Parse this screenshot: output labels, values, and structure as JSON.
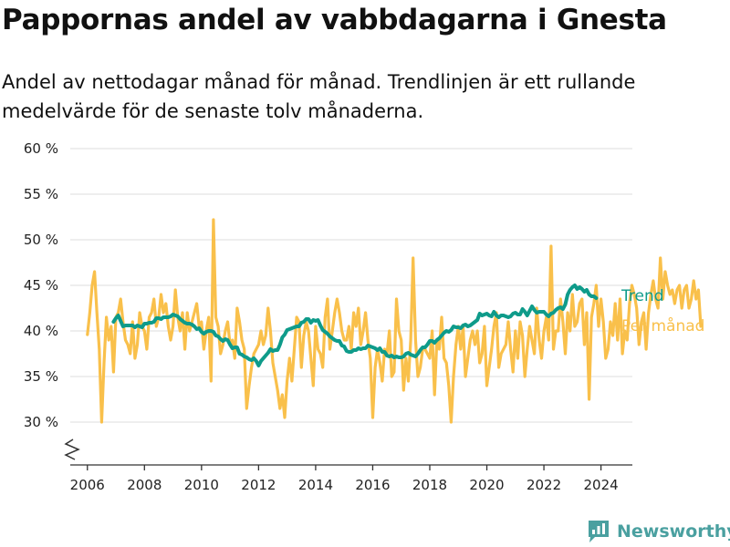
{
  "title": "Pappornas andel av vabbdagarna i Gnesta",
  "subtitle": "Andel av nettodagar månad för månad. Trendlinjen är ett rullande medelvärde för de senaste tolv månaderna.",
  "brand": "Newsworthy",
  "colors": {
    "monthly": "#f9c04b",
    "trend": "#0e9b8a",
    "grid": "#dedede",
    "axis": "#333333",
    "brand": "#4aa0a0"
  },
  "chart_data": {
    "type": "line",
    "title": "Pappornas andel av vabbdagarna i Gnesta",
    "xlim": [
      2005.4,
      2025.1
    ],
    "ylim": [
      30,
      60
    ],
    "y_ticks": [
      30,
      35,
      40,
      45,
      50,
      55,
      60
    ],
    "y_tick_labels": [
      "30 %",
      "35 %",
      "40 %",
      "45 %",
      "50 %",
      "55 %",
      "60 %"
    ],
    "x_ticks": [
      2006,
      2008,
      2010,
      2012,
      2014,
      2016,
      2018,
      2020,
      2022,
      2024
    ],
    "x_tick_labels": [
      "2006",
      "2008",
      "2010",
      "2012",
      "2014",
      "2016",
      "2018",
      "2020",
      "2022",
      "2024"
    ],
    "axis_break": true,
    "grid": true,
    "legend": "direct labels at right end of lines",
    "series": [
      {
        "name": "Per månad",
        "color": "#f9c04b",
        "x_start": "2006-01",
        "frequency": "monthly",
        "values": [
          39.6,
          42,
          45,
          46.5,
          42,
          38,
          30,
          36.5,
          41.5,
          39,
          40.5,
          35.5,
          41.5,
          42,
          43.5,
          41,
          39,
          38.5,
          37.5,
          41,
          37,
          38.5,
          42,
          40.5,
          40,
          38,
          41.5,
          42,
          43.5,
          40.5,
          41.5,
          44,
          42,
          43,
          40.5,
          39,
          40.5,
          44.5,
          41.5,
          40,
          42,
          38,
          42,
          40,
          41,
          42,
          43,
          40.5,
          41,
          38,
          40,
          41.5,
          34.5,
          52.2,
          41.5,
          40.5,
          37.5,
          38.5,
          40,
          41,
          38.5,
          39,
          37,
          42.5,
          41,
          39,
          38,
          31.5,
          34,
          36,
          37.5,
          38,
          38.5,
          40,
          38.5,
          39.5,
          42.5,
          40,
          36.5,
          35,
          33.5,
          31.5,
          33,
          30.5,
          34.5,
          37,
          34.5,
          38,
          41.5,
          41,
          36,
          39.5,
          41,
          40,
          37,
          34,
          40.5,
          38,
          37.5,
          36,
          41.5,
          43.5,
          38,
          40,
          42,
          43.5,
          42,
          40,
          39,
          39,
          40.5,
          38,
          42,
          40.5,
          42.5,
          38.5,
          40,
          42,
          39,
          37,
          30.5,
          36,
          38,
          36.5,
          34.5,
          38,
          37.5,
          40,
          35,
          35.5,
          43.5,
          40,
          39,
          33.5,
          37,
          34.5,
          39,
          48,
          39,
          35,
          36,
          38,
          38,
          37.5,
          37,
          40,
          33,
          39,
          38,
          41.5,
          37,
          36.5,
          34,
          30,
          35,
          38.5,
          40.5,
          38,
          40.5,
          35,
          37,
          39,
          40,
          38.5,
          40,
          36.5,
          37.5,
          40.5,
          34,
          36,
          38,
          40.5,
          42,
          36,
          37.5,
          38,
          38.5,
          41,
          38,
          35.5,
          40,
          37,
          41,
          39.5,
          35,
          38,
          40.5,
          39,
          37.5,
          42.5,
          39,
          37,
          40,
          41.5,
          39,
          49.3,
          38,
          40,
          40,
          43.5,
          41,
          37.5,
          42,
          40,
          44,
          40.5,
          41,
          43,
          43.5,
          38.5,
          42,
          32.5,
          41.5,
          43,
          45,
          40.5,
          43.5,
          41,
          37,
          38,
          41,
          39.5,
          43,
          39,
          43.5,
          37.5,
          40,
          39,
          43,
          45,
          44,
          42.5,
          38.5,
          41,
          42,
          38,
          42,
          44,
          45.5,
          43.5,
          42.5,
          48,
          43.5,
          46.5,
          45,
          44,
          44.5,
          43,
          44.5,
          45,
          42.5,
          44.5,
          45,
          42.5,
          43.5,
          45.5,
          43.5,
          44.5,
          40.5
        ]
      },
      {
        "name": "Trend",
        "color": "#0e9b8a",
        "x_start": "2006-12",
        "frequency": "monthly",
        "values": [
          41,
          41.4,
          41.7,
          41.1,
          40.5,
          40.6,
          40.6,
          40.6,
          40.6,
          40.4,
          40.6,
          40.5,
          40.4,
          40.8,
          40.8,
          40.9,
          40.9,
          41,
          41.4,
          41.4,
          41.3,
          41.5,
          41.5,
          41.5,
          41.6,
          41.8,
          41.7,
          41.6,
          41.3,
          41.1,
          40.9,
          40.8,
          40.8,
          40.7,
          40.5,
          40.2,
          40.3,
          39.9,
          39.7,
          39.9,
          40,
          40,
          39.9,
          39.5,
          39.4,
          39.1,
          38.9,
          39.1,
          39,
          38.5,
          38.1,
          38.2,
          38.2,
          37.5,
          37.4,
          37.2,
          37.1,
          36.9,
          36.8,
          37,
          36.7,
          36.2,
          36.7,
          37,
          37.3,
          37.6,
          38,
          37.8,
          37.9,
          37.9,
          38.5,
          39.3,
          39.6,
          40.1,
          40.2,
          40.3,
          40.4,
          40.5,
          40.5,
          40.9,
          41,
          41.3,
          41.3,
          40.9,
          41.2,
          41.1,
          41.2,
          40.6,
          40.1,
          39.9,
          39.7,
          39.4,
          39.2,
          39,
          38.9,
          38.9,
          38.4,
          38.3,
          37.8,
          37.7,
          37.7,
          37.9,
          37.9,
          38.1,
          38,
          38.1,
          38.1,
          38.4,
          38.3,
          38.2,
          38.1,
          37.9,
          38.1,
          37.7,
          37.7,
          37.3,
          37.2,
          37.3,
          37.1,
          37.2,
          37.1,
          37.1,
          37.2,
          37.5,
          37.6,
          37.4,
          37.3,
          37.2,
          37.5,
          37.9,
          38.2,
          38.2,
          38.5,
          38.9,
          38.9,
          38.7,
          39,
          39.2,
          39.5,
          39.8,
          40,
          39.9,
          40.1,
          40.5,
          40.4,
          40.4,
          40.3,
          40.6,
          40.7,
          40.5,
          40.6,
          40.8,
          41,
          41.2,
          41.9,
          41.7,
          41.8,
          41.9,
          41.7,
          41.6,
          42.1,
          41.7,
          41.5,
          41.7,
          41.7,
          41.6,
          41.5,
          41.6,
          41.9,
          42,
          41.8,
          41.8,
          42.4,
          42.1,
          41.7,
          42.2,
          42.7,
          42.3,
          42,
          42.1,
          42.1,
          42.1,
          41.8,
          41.6,
          41.9,
          42,
          42.3,
          42.5,
          42.6,
          42.4,
          42.9,
          44,
          44.5,
          44.8,
          45,
          44.6,
          44.8,
          44.6,
          44.3,
          44.5,
          44,
          43.8,
          43.8,
          43.6
        ]
      }
    ]
  }
}
